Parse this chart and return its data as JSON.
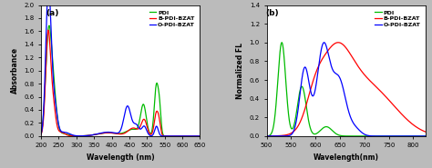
{
  "panel_a": {
    "title": "(a)",
    "xlabel": "Wavelength (nm)",
    "ylabel": "Absorbance",
    "xlim": [
      200,
      650
    ],
    "ylim": [
      0,
      2.0
    ],
    "xticks": [
      200,
      250,
      300,
      350,
      400,
      450,
      500,
      550,
      600,
      650
    ],
    "yticks": [
      0.0,
      0.2,
      0.4,
      0.6,
      0.8,
      1.0,
      1.2,
      1.4,
      1.6,
      1.8,
      2.0
    ],
    "legend": [
      "PDI",
      "B-PDI-BZAT",
      "O-PDI-BZAT"
    ],
    "colors": [
      "#00bb00",
      "#ff0000",
      "#0000ff"
    ]
  },
  "panel_b": {
    "title": "(b)",
    "xlabel": "Wavelength(nm)",
    "ylabel": "Normalized FL",
    "xlim": [
      500,
      825
    ],
    "ylim": [
      0,
      1.4
    ],
    "xticks": [
      500,
      550,
      600,
      650,
      700,
      750,
      800
    ],
    "yticks": [
      0.0,
      0.2,
      0.4,
      0.6,
      0.8,
      1.0,
      1.2,
      1.4
    ],
    "legend": [
      "PDI",
      "B-PDI-BZAT",
      "O-PDI-BZAT"
    ],
    "colors": [
      "#00bb00",
      "#ff0000",
      "#0000ff"
    ]
  },
  "background_color": "#bbbbbb",
  "plot_bg_color": "#ffffff"
}
